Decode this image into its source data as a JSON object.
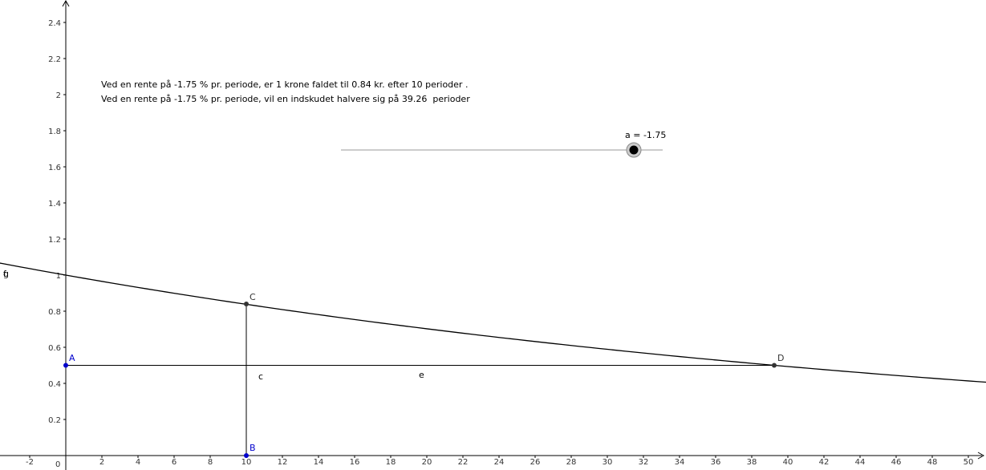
{
  "info": {
    "line1": "Ved en rente på -1.75 % pr. periode, er 1 krone faldet til 0.84 kr. efter 10 perioder .",
    "line2": "Ved en rente på -1.75 % pr. periode, vil en indskudet halvere sig på 39.26  perioder"
  },
  "slider": {
    "label": "a = -1.75",
    "value": -1.75
  },
  "axes": {
    "x_ticks": [
      "-2",
      "2",
      "4",
      "6",
      "8",
      "10",
      "12",
      "14",
      "16",
      "18",
      "20",
      "22",
      "24",
      "26",
      "28",
      "30",
      "32",
      "34",
      "36",
      "38",
      "40",
      "42",
      "44",
      "46",
      "48",
      "50"
    ],
    "y_ticks": [
      "0.2",
      "0.4",
      "0.6",
      "0.8",
      "1",
      "1.2",
      "1.4",
      "1.6",
      "1.8",
      "2",
      "2.2",
      "2.4"
    ],
    "origin_label": "0"
  },
  "points": {
    "A": {
      "label": "A",
      "x": 0,
      "y": 0.5
    },
    "B": {
      "label": "B",
      "x": 10,
      "y": 0
    },
    "C": {
      "label": "C",
      "x": 10,
      "y": 0.84
    },
    "D": {
      "label": "D",
      "x": 39.26,
      "y": 0.5
    }
  },
  "lines": {
    "c_label": "c",
    "e_label": "e",
    "f_label": "f",
    "g_label": "g"
  },
  "colors": {
    "axis": "#000000",
    "curve": "#000000",
    "point_blue": "#0000cc",
    "point_dark": "#333333",
    "slider_line": "#999999"
  }
}
